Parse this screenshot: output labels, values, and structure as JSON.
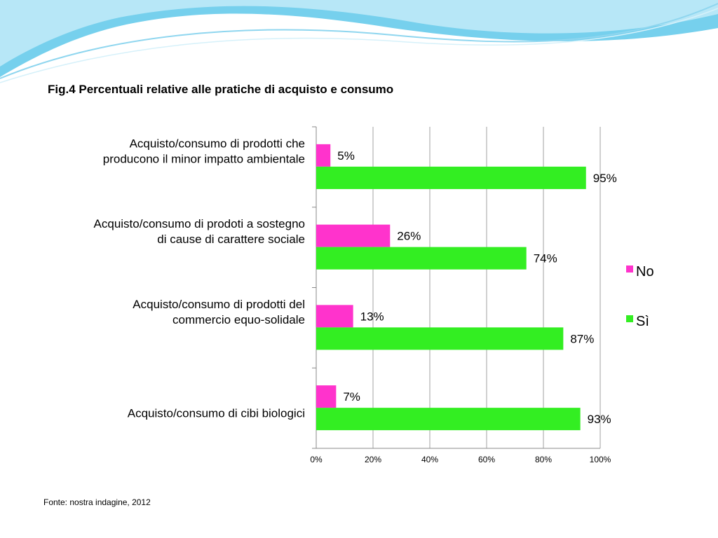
{
  "title": "Fig.4  Percentuali relative alle pratiche di acquisto e consumo",
  "source": "Fonte: nostra indagine, 2012",
  "colors": {
    "No": "#ff33cc",
    "Si": "#33ee22",
    "grid": "#a0a0a0",
    "wave_dark": "#5ec8ea",
    "wave_light": "#c8ecf8"
  },
  "chart_data": {
    "type": "bar",
    "orientation": "horizontal",
    "categories": [
      [
        "Acquisto/consumo di prodotti che",
        "producono il minor impatto ambientale"
      ],
      [
        "Acquisto/consumo di prodoti a sostegno",
        "di cause di carattere sociale"
      ],
      [
        "Acquisto/consumo di prodotti del",
        "commercio equo-solidale"
      ],
      [
        "Acquisto/consumo di cibi biologici"
      ]
    ],
    "series": [
      {
        "name": "No",
        "values": [
          5,
          26,
          13,
          7
        ],
        "labels": [
          "5%",
          "26%",
          "13%",
          "7%"
        ]
      },
      {
        "name": "Sì",
        "values": [
          95,
          74,
          87,
          93
        ],
        "labels": [
          "95%",
          "74%",
          "87%",
          "93%"
        ]
      }
    ],
    "x_ticks": [
      "0%",
      "20%",
      "40%",
      "60%",
      "80%",
      "100%"
    ],
    "xlim": [
      0,
      100
    ],
    "grid": true,
    "legend_position": "right"
  }
}
